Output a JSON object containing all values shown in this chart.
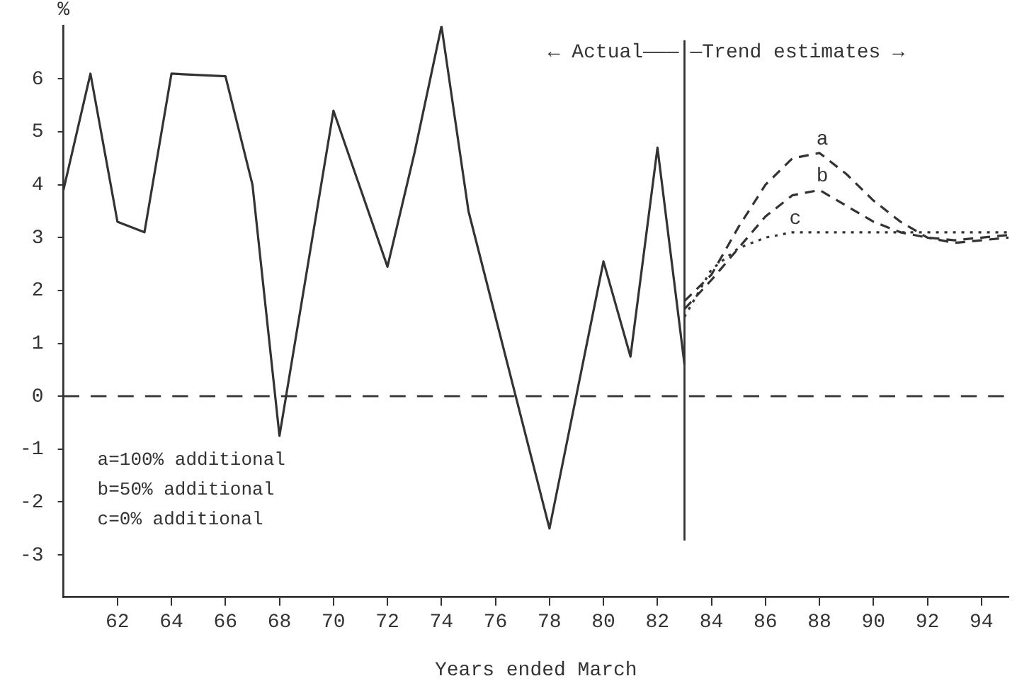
{
  "chart_data": {
    "type": "line",
    "xlabel": "Years ended March",
    "ylabel": "%",
    "xlim": [
      60,
      95
    ],
    "xticks": [
      62,
      64,
      66,
      68,
      70,
      72,
      74,
      76,
      78,
      80,
      82,
      84,
      86,
      88,
      90,
      92,
      94
    ],
    "ylim": [
      -3.8,
      7
    ],
    "yticks": [
      -3,
      -2,
      -1,
      0,
      1,
      2,
      3,
      4,
      5,
      6
    ],
    "grid": false,
    "legend": false,
    "marker": "none",
    "series": [
      {
        "color": "#333333",
        "line_style": "solid",
        "x": [
          60,
          61,
          62,
          63,
          64,
          66,
          67,
          68,
          70,
          72,
          73,
          74,
          75,
          76,
          78,
          80,
          81,
          82,
          83
        ],
        "values": [
          3.9,
          6.1,
          3.3,
          3.1,
          6.1,
          6.05,
          4.0,
          -0.75,
          5.4,
          2.45,
          4.6,
          7.0,
          3.5,
          1.5,
          -2.5,
          2.55,
          0.75,
          4.7,
          0.6
        ]
      },
      {
        "name": "a",
        "color": "#333333",
        "line_style": "dashed",
        "x": [
          83,
          84,
          85,
          86,
          87,
          88,
          89,
          90,
          91,
          92,
          93,
          94,
          95
        ],
        "values": [
          1.8,
          2.3,
          3.2,
          4.0,
          4.5,
          4.6,
          4.2,
          3.7,
          3.3,
          3.0,
          2.9,
          2.95,
          3.0
        ]
      },
      {
        "name": "b",
        "color": "#333333",
        "line_style": "dashed",
        "x": [
          83,
          84,
          85,
          86,
          87,
          88,
          89,
          90,
          91,
          92,
          93,
          94,
          95
        ],
        "values": [
          1.65,
          2.2,
          2.8,
          3.4,
          3.8,
          3.9,
          3.6,
          3.3,
          3.1,
          3.0,
          2.95,
          3.0,
          3.05
        ]
      },
      {
        "name": "c",
        "color": "#333333",
        "line_style": "dotted",
        "x": [
          83,
          84,
          85,
          86,
          87,
          88,
          89,
          90,
          91,
          92,
          93,
          94,
          95
        ],
        "values": [
          1.5,
          2.4,
          2.8,
          3.0,
          3.1,
          3.1,
          3.1,
          3.1,
          3.1,
          3.1,
          3.1,
          3.1,
          3.1
        ]
      }
    ],
    "ref_lines": [
      {
        "axis": "y",
        "value": 0,
        "line_style": "dashed",
        "color": "#333333"
      },
      {
        "axis": "x",
        "value": 83,
        "line_style": "solid",
        "color": "#333333"
      }
    ],
    "annotations": [
      "← Actual———",
      "—Trend estimates →",
      "a=100% additional",
      "b=50% additional",
      "c=0% additional"
    ]
  }
}
